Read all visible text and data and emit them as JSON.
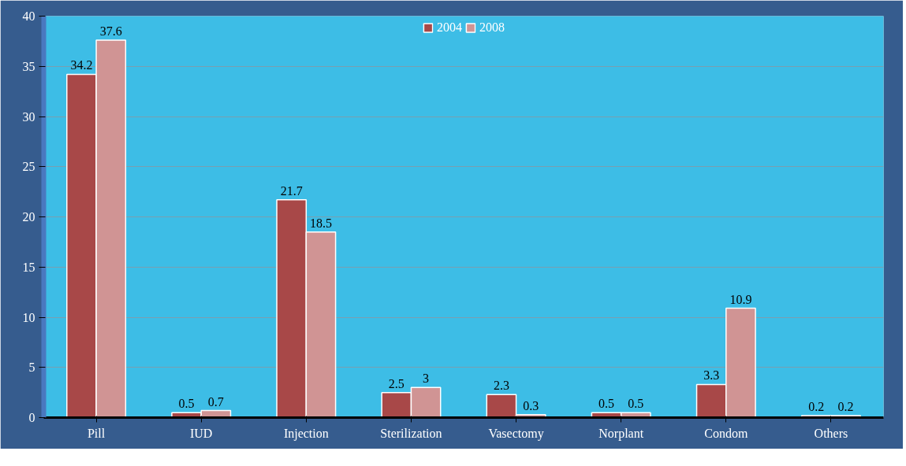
{
  "chart_data": {
    "type": "bar",
    "categories": [
      "Pill",
      "IUD",
      "Injection",
      "Sterilization",
      "Vasectomy",
      "Norplant",
      "Condom",
      "Others"
    ],
    "series": [
      {
        "name": "2004",
        "color": "#a84848",
        "values": [
          34.2,
          0.5,
          21.7,
          2.5,
          2.3,
          0.5,
          3.3,
          0.2
        ]
      },
      {
        "name": "2008",
        "color": "#d09494",
        "values": [
          37.6,
          0.7,
          18.5,
          3,
          0.3,
          0.5,
          10.9,
          0.2
        ]
      }
    ],
    "ylim": [
      0,
      40
    ],
    "yticks": [
      0,
      5,
      10,
      15,
      20,
      25,
      30,
      35,
      40
    ],
    "grid": "y",
    "legend": "top",
    "data_labels": true
  }
}
